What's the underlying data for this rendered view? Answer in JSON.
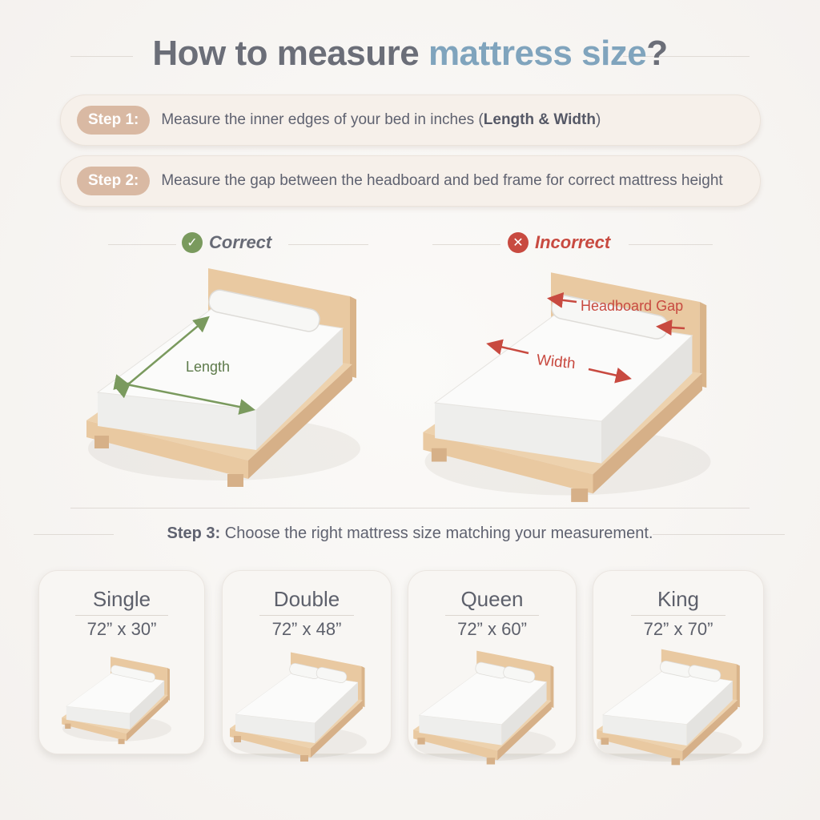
{
  "title": {
    "part1": "How to measure ",
    "accent": "mattress size",
    "part2": "?"
  },
  "steps": [
    {
      "badge": "Step 1:",
      "text": "Measure the inner edges of your bed in inches (",
      "bold": "Length & Width",
      "end": ")"
    },
    {
      "badge": "Step 2:",
      "text": "Measure the gap between the headboard and bed frame for correct mattress height"
    }
  ],
  "correct": {
    "label": "Correct",
    "icon": "check-icon",
    "color": "#7a9a5e",
    "annotation": "Length"
  },
  "incorrect": {
    "label": "Incorrect",
    "icon": "x-icon",
    "color": "#c84a40",
    "annotations": {
      "gap": "Headboard Gap",
      "width": "Width"
    }
  },
  "step3": {
    "badge": "Step 3:",
    "text": " Choose the right mattress size matching your measurement."
  },
  "sizes": [
    {
      "name": "Single",
      "dims": "72” x 30”",
      "pillows": 1
    },
    {
      "name": "Double",
      "dims": "72” x 48”",
      "pillows": 2
    },
    {
      "name": "Queen",
      "dims": "72” x 60”",
      "pillows": 2
    },
    {
      "name": "King",
      "dims": "72” x 70”",
      "pillows": 2
    }
  ],
  "colors": {
    "wood": "#e9c9a1",
    "mattress": "#fbfbfa",
    "accent": "#80a4bd",
    "badge": "#d9b9a3"
  }
}
